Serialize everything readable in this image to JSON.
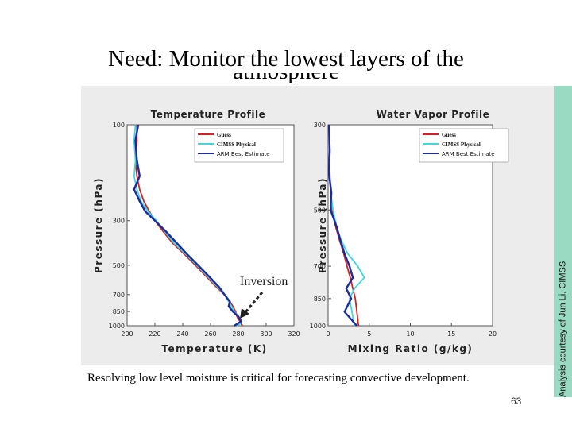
{
  "slide": {
    "title_line1": "Need: Monitor the lowest layers of the",
    "title_line2": "atmosphere",
    "caption": "Resolving low level moisture is critical for forecasting convective development.",
    "page_number": "63",
    "credit": "Analysis courtesy of Jun Li, CIMSS"
  },
  "colors": {
    "guess": "#d42020",
    "cimss": "#3fd8e0",
    "arm": "#1a2aa0",
    "credit_bar": "#9ad9c2"
  },
  "chart_data": [
    {
      "type": "line",
      "title": "Temperature Profile",
      "xlabel": "Temperature (K)",
      "ylabel": "Pressure (hPa)",
      "xlim": [
        200,
        320
      ],
      "ylim": [
        1000,
        100
      ],
      "y_scale": "log",
      "xticks": [
        "200",
        "220",
        "240",
        "260",
        "280",
        "300",
        "320"
      ],
      "yticks": [
        "100",
        "300",
        "500",
        "700",
        "850",
        "1000"
      ],
      "legend": [
        "Guess",
        "CIMSS Physical",
        "ARM Best Estimate"
      ],
      "legend_position": "top-right",
      "annotation": "Inversion",
      "series": [
        {
          "name": "Guess",
          "color": "#d42020",
          "x": [
            207,
            207,
            206,
            207,
            209,
            212,
            216,
            220,
            226,
            233,
            241,
            249,
            257,
            264,
            270,
            274,
            276,
            278,
            279,
            281,
            282,
            283
          ],
          "y": [
            100,
            120,
            150,
            180,
            210,
            240,
            270,
            300,
            340,
            390,
            440,
            500,
            570,
            640,
            700,
            760,
            800,
            850,
            900,
            950,
            980,
            1000
          ]
        },
        {
          "name": "CIMSS Physical",
          "color": "#3fd8e0",
          "x": [
            206,
            205,
            206,
            205,
            207,
            210,
            215,
            221,
            227,
            234,
            242,
            250,
            258,
            265,
            270,
            273,
            275,
            277,
            280,
            282,
            281,
            279
          ],
          "y": [
            100,
            120,
            150,
            180,
            210,
            240,
            270,
            300,
            340,
            390,
            440,
            500,
            570,
            640,
            700,
            760,
            800,
            850,
            900,
            950,
            980,
            1000
          ]
        },
        {
          "name": "ARM Best Estimate",
          "color": "#1a2aa0",
          "x": [
            208,
            206,
            207,
            209,
            205,
            209,
            213,
            220,
            228,
            236,
            243,
            251,
            259,
            266,
            270,
            274,
            273,
            276,
            280,
            282,
            279,
            277
          ],
          "y": [
            100,
            120,
            150,
            180,
            210,
            240,
            270,
            300,
            340,
            390,
            440,
            500,
            570,
            640,
            700,
            760,
            800,
            850,
            900,
            950,
            980,
            1000
          ]
        }
      ]
    },
    {
      "type": "line",
      "title": "Water Vapor Profile",
      "xlabel": "Mixing Ratio (g/kg)",
      "ylabel": "Pressure (hPa)",
      "xlim": [
        0,
        20
      ],
      "ylim": [
        1000,
        300
      ],
      "y_scale": "log",
      "xticks": [
        "0",
        "5",
        "10",
        "15",
        "20"
      ],
      "yticks": [
        "300",
        "500",
        "700",
        "850",
        "1000"
      ],
      "legend": [
        "Guess",
        "CIMSS Physical",
        "ARM Best Estimate"
      ],
      "legend_position": "top-right",
      "series": [
        {
          "name": "Guess",
          "color": "#d42020",
          "x": [
            0.1,
            0.1,
            0.2,
            0.3,
            0.5,
            0.9,
            1.4,
            1.9,
            2.3,
            2.7,
            3.0,
            3.3,
            3.5,
            3.7
          ],
          "y": [
            300,
            350,
            400,
            450,
            500,
            550,
            600,
            650,
            700,
            750,
            800,
            850,
            920,
            1000
          ]
        },
        {
          "name": "CIMSS Physical",
          "color": "#3fd8e0",
          "x": [
            0.1,
            0.1,
            0.2,
            0.3,
            0.6,
            1.0,
            1.6,
            2.4,
            3.6,
            4.4,
            3.2,
            2.6,
            2.9,
            3.2
          ],
          "y": [
            300,
            350,
            400,
            450,
            500,
            550,
            600,
            650,
            700,
            750,
            800,
            850,
            920,
            1000
          ]
        },
        {
          "name": "ARM Best Estimate",
          "color": "#1a2aa0",
          "x": [
            0.1,
            0.2,
            0.1,
            0.4,
            0.3,
            1.0,
            1.5,
            2.0,
            2.6,
            3.0,
            2.2,
            2.8,
            2.0,
            3.5
          ],
          "y": [
            300,
            350,
            400,
            450,
            500,
            550,
            600,
            650,
            700,
            750,
            800,
            850,
            920,
            1000
          ]
        }
      ]
    }
  ]
}
